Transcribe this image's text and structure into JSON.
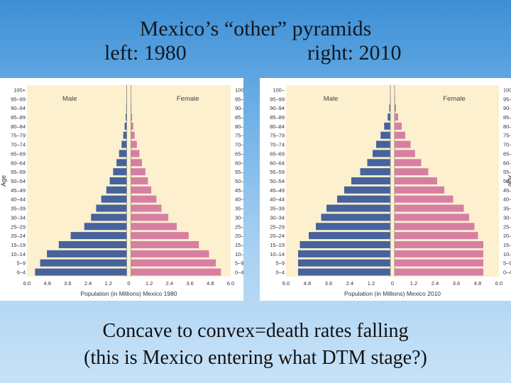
{
  "slide": {
    "title_line1": "Mexico’s “other” pyramids",
    "title_left": "left: 1980",
    "title_right": "right: 2010",
    "footer_line1": "Concave to convex=death rates falling",
    "footer_line2": "(this is Mexico entering what DTM stage?)"
  },
  "colors": {
    "male": "#46639c",
    "female": "#d77fa3",
    "plot_bg": "#fdf0cf"
  },
  "chart_data": [
    {
      "type": "bar",
      "orientation": "population-pyramid",
      "title": "",
      "xlabel": "Population (in Millions) Mexico 1980",
      "ylabel": "Age",
      "legend": [
        "Male",
        "Female"
      ],
      "xlim": [
        -6.0,
        6.0
      ],
      "x_ticks": [
        "6.0",
        "4.8",
        "3.6",
        "2.4",
        "1.2",
        "0",
        "1.2",
        "2.4",
        "3.6",
        "4.8",
        "6.0"
      ],
      "categories": [
        "0–4",
        "5–9",
        "10–14",
        "15–19",
        "20–24",
        "25–29",
        "30–34",
        "35–39",
        "40–44",
        "45–49",
        "50–54",
        "55–59",
        "60–64",
        "65–69",
        "70–74",
        "75–79",
        "80–84",
        "85–89",
        "90–94",
        "95–99",
        "100+"
      ],
      "left_tick_labels": [
        "0–4",
        "5–9",
        "10–14",
        "15–19",
        "20–24",
        "25–29",
        "30–34",
        "35–39",
        "40–44",
        "45–49",
        "50–54",
        "55–59",
        "60–64",
        "65–69",
        "70–74",
        "75–79",
        "80–84",
        "85–89",
        "90–94",
        "95–99",
        "100+"
      ],
      "right_tick_labels": [
        "0–4",
        "5–9",
        "10–14",
        "15–19",
        "20–24",
        "25–29",
        "30–34",
        "35–39",
        "40–44",
        "45–49",
        "50–54",
        "55–59",
        "60–64",
        "65–69",
        "70–74",
        "75–79",
        "80–84",
        "85–89",
        "90–94",
        "95–99",
        "100+"
      ],
      "series": [
        {
          "name": "Male",
          "values": [
            5.4,
            5.1,
            4.7,
            4.0,
            3.3,
            2.5,
            2.1,
            1.8,
            1.5,
            1.2,
            1.0,
            0.8,
            0.6,
            0.45,
            0.3,
            0.2,
            0.12,
            0.06,
            0.03,
            0.01,
            0.0
          ]
        },
        {
          "name": "Female",
          "values": [
            5.3,
            5.0,
            4.6,
            4.0,
            3.4,
            2.7,
            2.2,
            1.8,
            1.5,
            1.2,
            1.0,
            0.85,
            0.65,
            0.5,
            0.35,
            0.22,
            0.14,
            0.07,
            0.03,
            0.01,
            0.0
          ]
        }
      ]
    },
    {
      "type": "bar",
      "orientation": "population-pyramid",
      "title": "",
      "xlabel": "Population (in Millions) Mexico 2010",
      "ylabel": "Age",
      "legend": [
        "Male",
        "Female"
      ],
      "xlim": [
        -6.0,
        6.0
      ],
      "x_ticks": [
        "6.0",
        "4.8",
        "3.6",
        "2.4",
        "1.2",
        "0",
        "1.2",
        "2.4",
        "3.6",
        "4.8",
        "6.0"
      ],
      "categories": [
        "0–4",
        "5–9",
        "10–14",
        "15–19",
        "20–24",
        "25–29",
        "30–34",
        "35–39",
        "40–44",
        "45–49",
        "50–54",
        "55–59",
        "60–64",
        "65–69",
        "70–74",
        "75–79",
        "80–84",
        "85–89",
        "90–94",
        "95–99",
        "100+"
      ],
      "left_tick_labels": [
        "0–4",
        "5–9",
        "10–14",
        "15–19",
        "20–24",
        "25–29",
        "30–34",
        "35–39",
        "40–44",
        "45–49",
        "50–54",
        "55–59",
        "60–64",
        "65–69",
        "70–74",
        "75–79",
        "80–84",
        "85–89",
        "90–94",
        "95–99",
        "100–"
      ],
      "right_tick_labels": [
        "0–4",
        "5–9",
        "10–14",
        "15–19",
        "20–24",
        "25–29",
        "30–34",
        "35–39",
        "40–44",
        "45–49",
        "50–54",
        "55–59",
        "60–64",
        "65–69",
        "70–74",
        "75–79",
        "80–84",
        "85–89",
        "90–94",
        "95–99",
        "100+"
      ],
      "series": [
        {
          "name": "Male",
          "values": [
            5.2,
            5.2,
            5.2,
            5.1,
            4.6,
            4.2,
            3.9,
            3.6,
            3.0,
            2.6,
            2.2,
            1.7,
            1.3,
            1.0,
            0.8,
            0.55,
            0.35,
            0.15,
            0.06,
            0.02,
            0.0
          ]
        },
        {
          "name": "Female",
          "values": [
            5.0,
            5.0,
            5.0,
            5.0,
            4.7,
            4.5,
            4.2,
            3.9,
            3.3,
            2.8,
            2.4,
            1.9,
            1.5,
            1.15,
            0.9,
            0.6,
            0.4,
            0.2,
            0.08,
            0.03,
            0.0
          ]
        }
      ]
    }
  ]
}
